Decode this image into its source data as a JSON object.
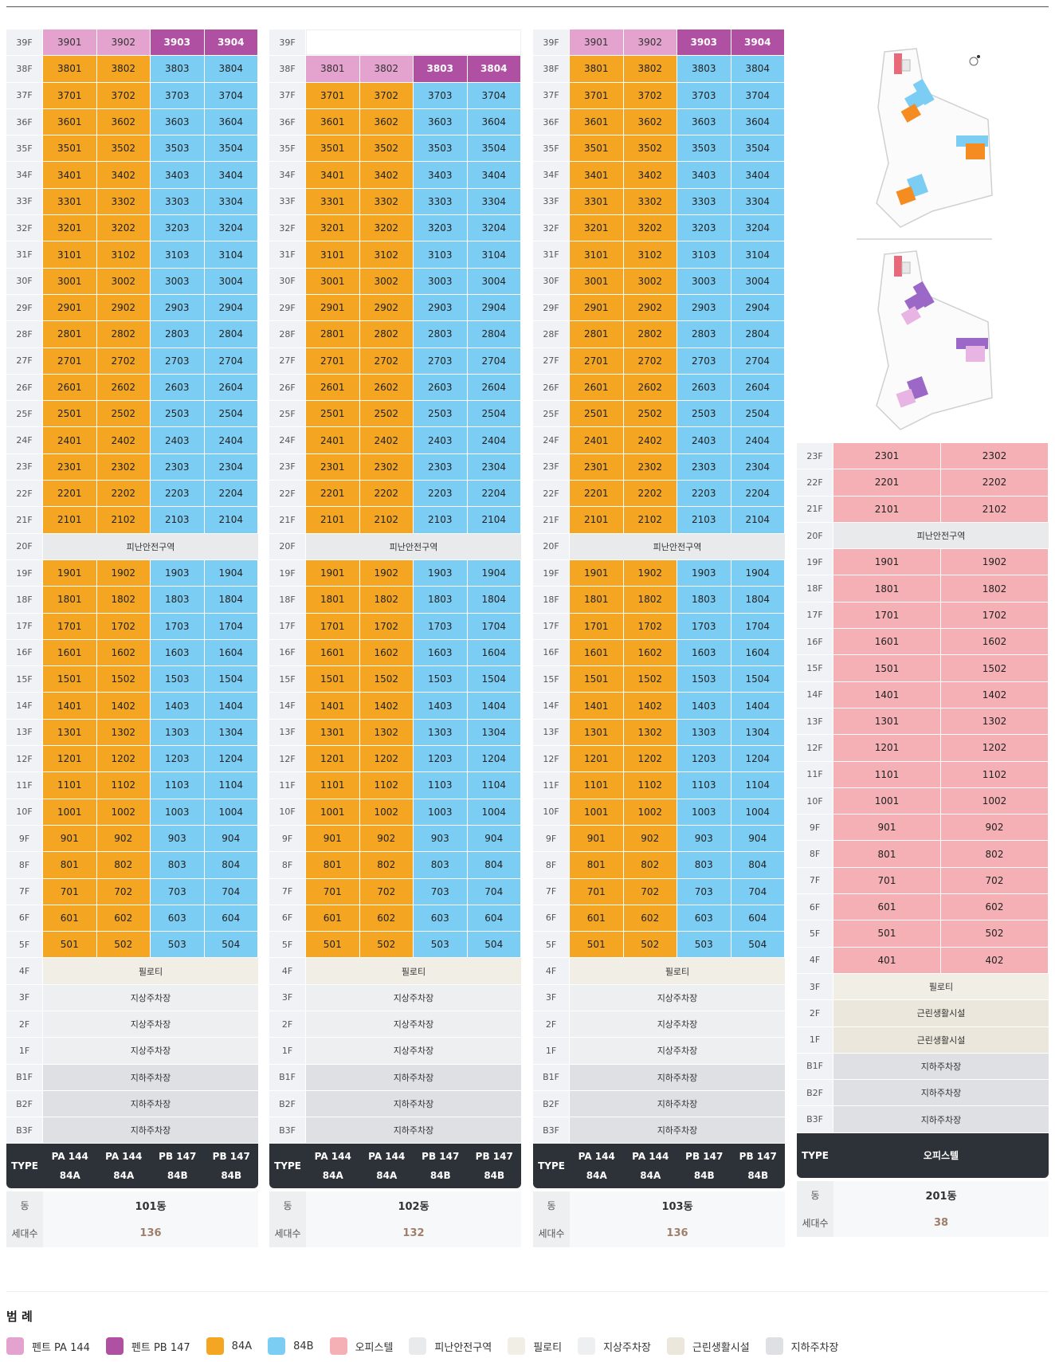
{
  "colors": {
    "pent_pa": "#e4a2cf",
    "pent_pb": "#b050a3",
    "a84": "#f4a521",
    "b84": "#7ccdf4",
    "officetel": "#f4b0b5",
    "refuge": "#e9eaec",
    "piloti": "#f1eee6",
    "parking_up": "#eeeff1",
    "retail": "#ebe7dc",
    "parking_down": "#dfe0e4"
  },
  "buildings": [
    {
      "name": "101동",
      "households": "136",
      "type_label": "TYPE",
      "types": [
        {
          "line1": "PA 144",
          "line2": "84A"
        },
        {
          "line1": "PA 144",
          "line2": "84A"
        },
        {
          "line1": "PB 147",
          "line2": "84B"
        },
        {
          "line1": "PB 147",
          "line2": "84B"
        }
      ],
      "labels": {
        "dong": "동",
        "count": "세대수"
      }
    },
    {
      "name": "102동",
      "households": "132",
      "type_label": "TYPE",
      "types": [
        {
          "line1": "PA 144",
          "line2": "84A"
        },
        {
          "line1": "PA 144",
          "line2": "84A"
        },
        {
          "line1": "PB 147",
          "line2": "84B"
        },
        {
          "line1": "PB 147",
          "line2": "84B"
        }
      ],
      "labels": {
        "dong": "동",
        "count": "세대수"
      }
    },
    {
      "name": "103동",
      "households": "136",
      "type_label": "TYPE",
      "types": [
        {
          "line1": "PA 144",
          "line2": "84A"
        },
        {
          "line1": "PA 144",
          "line2": "84A"
        },
        {
          "line1": "PB 147",
          "line2": "84B"
        },
        {
          "line1": "PB 147",
          "line2": "84B"
        }
      ],
      "labels": {
        "dong": "동",
        "count": "세대수"
      }
    },
    {
      "name": "201동",
      "households": "38",
      "type_label": "TYPE",
      "type_span": "오피스텔",
      "labels": {
        "dong": "동",
        "count": "세대수"
      }
    }
  ],
  "zones": {
    "refuge": "피난안전구역",
    "piloti": "필로티",
    "parking_up": "지상주차장",
    "parking_down": "지하주차장",
    "retail": "근린생활시설"
  },
  "legend": {
    "title": "범 례",
    "items": [
      {
        "label": "펜트 PA 144",
        "color": "#e4a2cf"
      },
      {
        "label": "펜트 PB 147",
        "color": "#b050a3"
      },
      {
        "label": "84A",
        "color": "#f4a521"
      },
      {
        "label": "84B",
        "color": "#7ccdf4"
      },
      {
        "label": "오피스텔",
        "color": "#f4b0b5"
      },
      {
        "label": "피난안전구역",
        "color": "#e9eaec"
      },
      {
        "label": "필로티",
        "color": "#f1eee6"
      },
      {
        "label": "지상주차장",
        "color": "#eeeff1"
      },
      {
        "label": "근린생활시설",
        "color": "#ebe7dc"
      },
      {
        "label": "지하주차장",
        "color": "#dfe0e4"
      }
    ]
  }
}
